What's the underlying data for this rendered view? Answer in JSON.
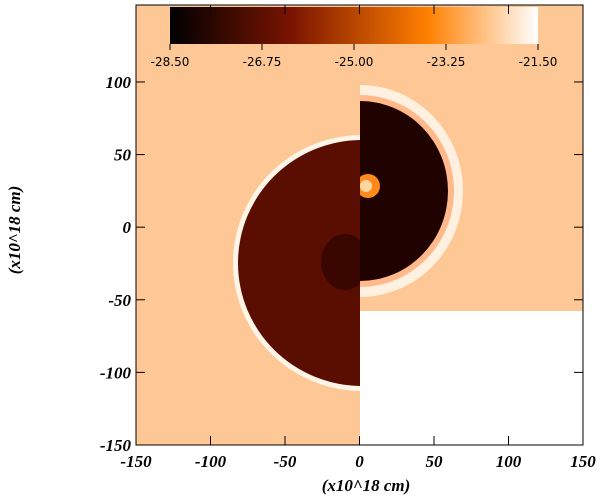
{
  "chart_data": {
    "type": "image",
    "xlabel": "(x10^18 cm)",
    "ylabel": "(x10^18 cm)",
    "xlim": [
      -150,
      150
    ],
    "ylim": [
      -150,
      153
    ],
    "xticks": [
      -150,
      -100,
      -50,
      0,
      50,
      100,
      150
    ],
    "yticks": [
      -150,
      -100,
      -50,
      0,
      50,
      100
    ],
    "colorbar": {
      "lim": [
        -28.5,
        -21.5
      ],
      "ticks": [
        {
          "value": -28.5,
          "label": "-28.50"
        },
        {
          "value": -26.75,
          "label": "-26.75"
        },
        {
          "value": -25,
          "label": "-25.00"
        },
        {
          "value": -23.25,
          "label": "-23.25"
        },
        {
          "value": -21.5,
          "label": "-21.50"
        }
      ],
      "colors": [
        "#000000",
        "#7a1400",
        "#ff8000",
        "#ffffff"
      ]
    }
  }
}
